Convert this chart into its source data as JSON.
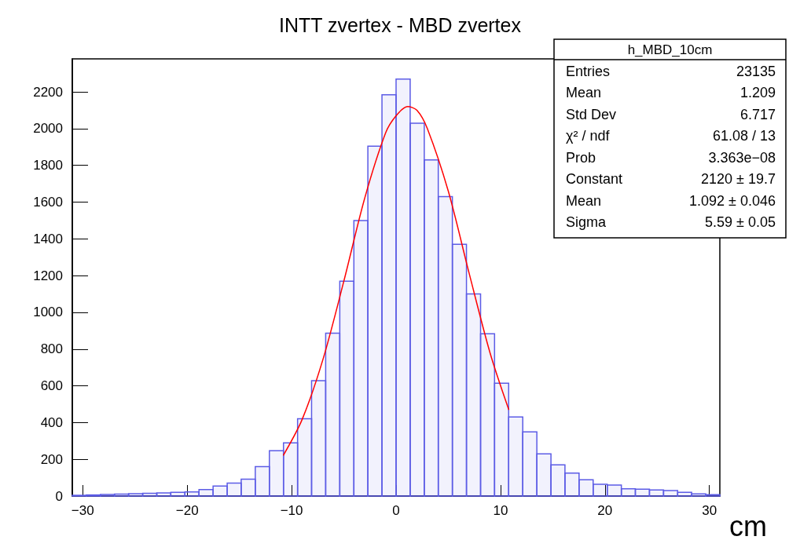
{
  "chart_data": {
    "type": "histogram",
    "title": "INTT zvertex - MBD zvertex",
    "xlabel": "cm",
    "bins": [
      -31,
      -29.65,
      -28.3,
      -26.96,
      -25.61,
      -24.26,
      -22.91,
      -21.57,
      -20.22,
      -18.87,
      -17.52,
      -16.17,
      -14.83,
      -13.48,
      -12.13,
      -10.78,
      -9.43,
      -8.09,
      -6.74,
      -5.39,
      -4.04,
      -2.7,
      -1.35,
      0,
      1.35,
      2.7,
      4.04,
      5.39,
      6.74,
      8.09,
      9.43,
      10.78,
      12.13,
      13.48,
      14.83,
      16.17,
      17.52,
      18.87,
      20.22,
      21.57,
      22.91,
      24.26,
      25.61,
      26.96,
      28.3,
      29.65,
      31
    ],
    "series": [
      {
        "color": "#5c5ce6",
        "values": [
          4,
          6,
          9,
          11,
          13,
          15,
          17,
          20,
          22,
          35,
          54,
          71,
          92,
          160,
          247,
          290,
          421,
          628,
          887,
          1170,
          1500,
          1905,
          2185,
          2270,
          2030,
          1830,
          1630,
          1370,
          1100,
          883,
          614,
          430,
          349,
          230,
          170,
          125,
          89,
          64,
          60,
          40,
          37,
          33,
          30,
          20,
          12,
          8
        ]
      },
      {
        "type": "line",
        "color": "#ff0000",
        "x": [
          -10.8,
          -9,
          -7,
          -5,
          -3,
          -1,
          0,
          1.1,
          2,
          3,
          5,
          7,
          9,
          10.8
        ],
        "values": [
          221,
          416,
          744,
          1170,
          1622,
          1977,
          2070,
          2120,
          2100,
          2000,
          1660,
          1212,
          779,
          469
        ]
      }
    ],
    "xlim": [
      -31,
      31
    ],
    "xticks": [
      -30,
      -20,
      -10,
      0,
      10,
      20,
      30
    ],
    "ylim": [
      0,
      2380
    ],
    "yticks": [
      0,
      200,
      400,
      600,
      800,
      1000,
      1200,
      1400,
      1600,
      1800,
      2000,
      2200
    ],
    "grid": false,
    "marker": "none",
    "line_style": "solid",
    "annotations": [
      "h_MBD_10cm",
      "Entries",
      "23135",
      "Mean",
      "1.209",
      "Std Dev",
      "6.717",
      "χ² / ndf",
      "61.08 / 13",
      "Prob",
      "3.363e−08",
      "Constant",
      "2120 ± 19.7",
      "Mean",
      "1.092 ± 0.046",
      "Sigma",
      "5.59 ± 0.05"
    ]
  }
}
